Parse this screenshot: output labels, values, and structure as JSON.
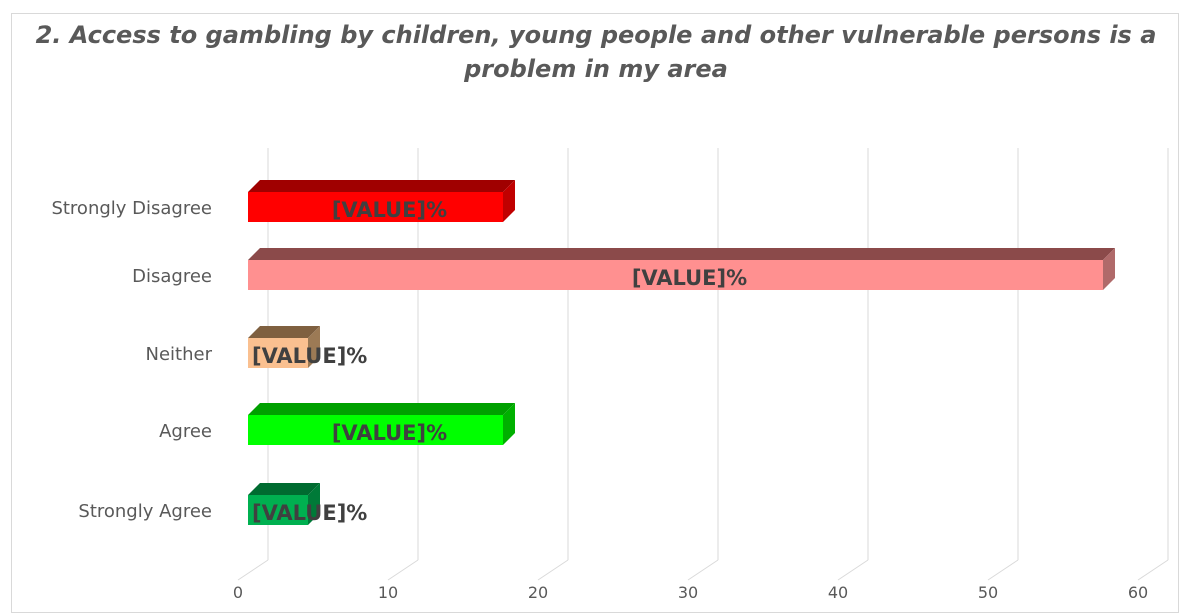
{
  "chart_data": {
    "type": "bar",
    "orientation": "horizontal",
    "title": "2. Access to gambling by children, young people and other vulnerable persons is a problem in my area",
    "title_lines": [
      "2. Access to gambling by children, young people and other vulnerable persons is a",
      "problem in my area"
    ],
    "categories": [
      "Strongly Disagree",
      "Disagree",
      "Neither",
      "Agree",
      "Strongly Agree"
    ],
    "values": [
      17,
      57,
      4,
      17,
      4
    ],
    "data_labels": [
      "[VALUE]%",
      "[VALUE]%",
      "[VALUE]%",
      "[VALUE]%",
      "[VALUE]%"
    ],
    "colors": [
      "#ff0000",
      "#ff9090",
      "#fac090",
      "#00ff00",
      "#00b050"
    ],
    "top_colors": [
      "#a00000",
      "#8b4a4a",
      "#7f6040",
      "#00a000",
      "#006b30"
    ],
    "side_colors": [
      "#c00000",
      "#b06a6a",
      "#9c7a55",
      "#00b000",
      "#007a38"
    ],
    "xticks": [
      0,
      10,
      20,
      30,
      40,
      50,
      60
    ],
    "xlim": [
      0,
      60
    ],
    "xlabel": "",
    "ylabel": "",
    "grid": true,
    "legend": "none",
    "style": "3d"
  }
}
